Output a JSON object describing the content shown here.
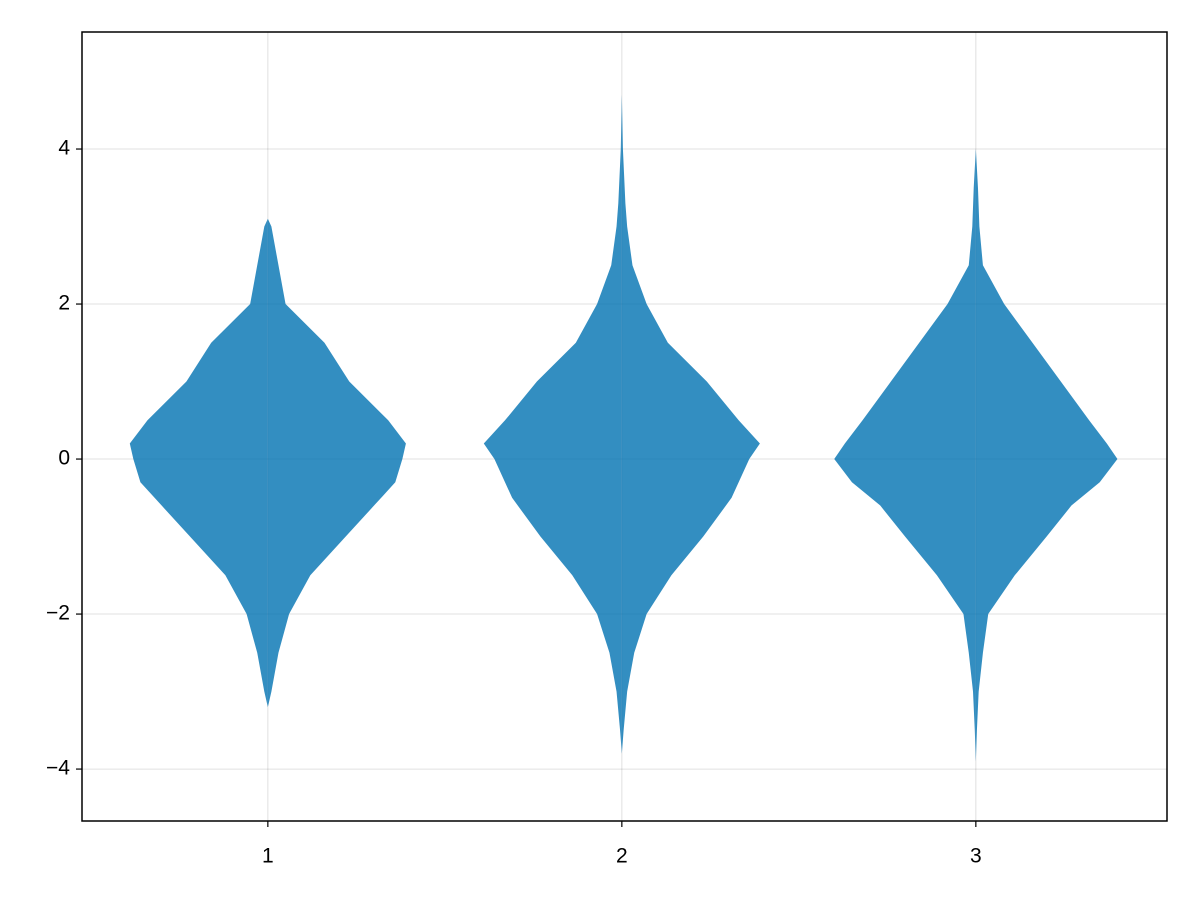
{
  "chart_data": {
    "type": "violin",
    "color": "#0072b2",
    "alpha": 0.8,
    "grid": true,
    "xlim": [
      0.475,
      3.54
    ],
    "ylim": [
      -4.67,
      5.51
    ],
    "xticks": [
      1,
      2,
      3
    ],
    "yticks": [
      {
        "value": -4,
        "label": "−4"
      },
      {
        "value": -2,
        "label": "−2"
      },
      0,
      2,
      4
    ],
    "violins": [
      {
        "x": 1,
        "y": [
          3.1,
          3.0,
          2.5,
          2.0,
          1.5,
          1.0,
          0.5,
          0.2,
          0,
          -0.3,
          -0.6,
          -1.0,
          -1.5,
          -2.0,
          -2.5,
          -3.0,
          -3.2
        ],
        "widths": [
          0,
          0.01,
          0.03,
          0.05,
          0.16,
          0.23,
          0.34,
          0.39,
          0.38,
          0.36,
          0.3,
          0.22,
          0.12,
          0.06,
          0.03,
          0.01,
          0
        ]
      },
      {
        "x": 2,
        "y": [
          4.7,
          4.0,
          3.3,
          3.0,
          2.5,
          2.0,
          1.5,
          1.0,
          0.5,
          0.2,
          0,
          -0.5,
          -1.0,
          -1.5,
          -2.0,
          -2.5,
          -3.0,
          -3.5,
          -3.8
        ],
        "widths": [
          0,
          0.003,
          0.01,
          0.015,
          0.03,
          0.07,
          0.13,
          0.24,
          0.33,
          0.39,
          0.36,
          0.31,
          0.23,
          0.14,
          0.07,
          0.035,
          0.015,
          0.005,
          0
        ]
      },
      {
        "x": 3,
        "y": [
          4.0,
          3.5,
          3.0,
          2.5,
          2.0,
          1.5,
          1.0,
          0.5,
          0.2,
          0,
          -0.3,
          -0.6,
          -1.0,
          -1.5,
          -2.0,
          -2.5,
          -3.0,
          -3.5,
          -3.9
        ],
        "widths": [
          0,
          0.006,
          0.01,
          0.02,
          0.08,
          0.16,
          0.24,
          0.32,
          0.37,
          0.4,
          0.35,
          0.27,
          0.2,
          0.11,
          0.035,
          0.02,
          0.008,
          0.003,
          0
        ]
      }
    ]
  }
}
